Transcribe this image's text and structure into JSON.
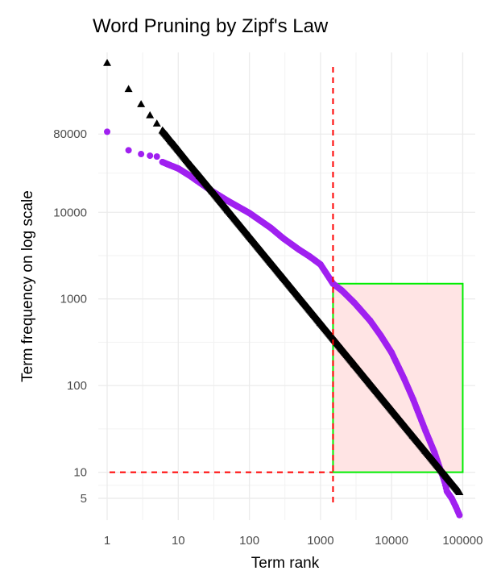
{
  "chart_data": {
    "type": "scatter",
    "title": "Word Pruning by Zipf's Law",
    "xlabel": "Term rank",
    "ylabel": "Term frequency on log scale",
    "x_scale": "log",
    "y_scale": "log",
    "xlim": [
      0.75,
      150000
    ],
    "ylim": [
      2.8,
      700000
    ],
    "x_ticks": [
      {
        "value": 1,
        "label": "1"
      },
      {
        "value": 10,
        "label": "10"
      },
      {
        "value": 100,
        "label": "100"
      },
      {
        "value": 1000,
        "label": "1000"
      },
      {
        "value": 10000,
        "label": "10000"
      },
      {
        "value": 100000,
        "label": "100000"
      }
    ],
    "y_ticks": [
      {
        "value": 5,
        "label": "5"
      },
      {
        "value": 10,
        "label": "10"
      },
      {
        "value": 100,
        "label": "100"
      },
      {
        "value": 1000,
        "label": "1000"
      },
      {
        "value": 10000,
        "label": "10000"
      },
      {
        "value": 80000,
        "label": "80000"
      }
    ],
    "grid": true,
    "legend": "none",
    "colors": {
      "observed": "#a020f0",
      "zipf": "#000000",
      "threshold_line": "#ff0000",
      "window_border": "#00ee00",
      "window_fill": "#ffe4e4"
    },
    "series": [
      {
        "marker": "circle",
        "color": "#a020f0",
        "points": [
          [
            1,
            85000
          ],
          [
            2,
            52000
          ],
          [
            3,
            47000
          ],
          [
            4,
            45000
          ],
          [
            5,
            44000
          ],
          [
            6,
            38000
          ],
          [
            7,
            36000
          ],
          [
            10,
            32000
          ],
          [
            15,
            26000
          ],
          [
            20,
            22000
          ],
          [
            30,
            17500
          ],
          [
            50,
            13500
          ],
          [
            100,
            9800
          ],
          [
            200,
            6600
          ],
          [
            300,
            5000
          ],
          [
            500,
            3700
          ],
          [
            700,
            3100
          ],
          [
            1000,
            2500
          ],
          [
            1500,
            1500
          ],
          [
            2000,
            1250
          ],
          [
            3000,
            900
          ],
          [
            5000,
            560
          ],
          [
            7000,
            380
          ],
          [
            10000,
            240
          ],
          [
            15000,
            120
          ],
          [
            20000,
            70
          ],
          [
            30000,
            30
          ],
          [
            40000,
            17
          ],
          [
            50000,
            10
          ],
          [
            55000,
            8
          ],
          [
            60000,
            6
          ],
          [
            70000,
            5
          ],
          [
            80000,
            4
          ],
          [
            90000,
            3.2
          ]
        ]
      },
      {
        "marker": "triangle",
        "color": "#000000",
        "points": [
          [
            1,
            530000
          ],
          [
            2,
            265000
          ],
          [
            3,
            177000
          ],
          [
            4,
            132000
          ],
          [
            5,
            106000
          ],
          [
            6,
            88000
          ],
          [
            7,
            76000
          ],
          [
            8,
            66000
          ],
          [
            9,
            59000
          ],
          [
            10,
            53000
          ],
          [
            15,
            35000
          ],
          [
            20,
            26500
          ],
          [
            30,
            17700
          ],
          [
            50,
            10600
          ],
          [
            100,
            5300
          ],
          [
            200,
            2650
          ],
          [
            300,
            1770
          ],
          [
            500,
            1060
          ],
          [
            1000,
            530
          ],
          [
            2000,
            265
          ],
          [
            3000,
            177
          ],
          [
            5000,
            106
          ],
          [
            10000,
            53
          ],
          [
            20000,
            26.5
          ],
          [
            30000,
            17.7
          ],
          [
            50000,
            10.6
          ],
          [
            90000,
            5.9
          ]
        ]
      }
    ],
    "reference_lines": {
      "vertical_x": 1500,
      "horizontal_y": 10
    },
    "highlight_region": {
      "x_range": [
        1500,
        100000
      ],
      "y_range": [
        10,
        1500
      ]
    }
  }
}
